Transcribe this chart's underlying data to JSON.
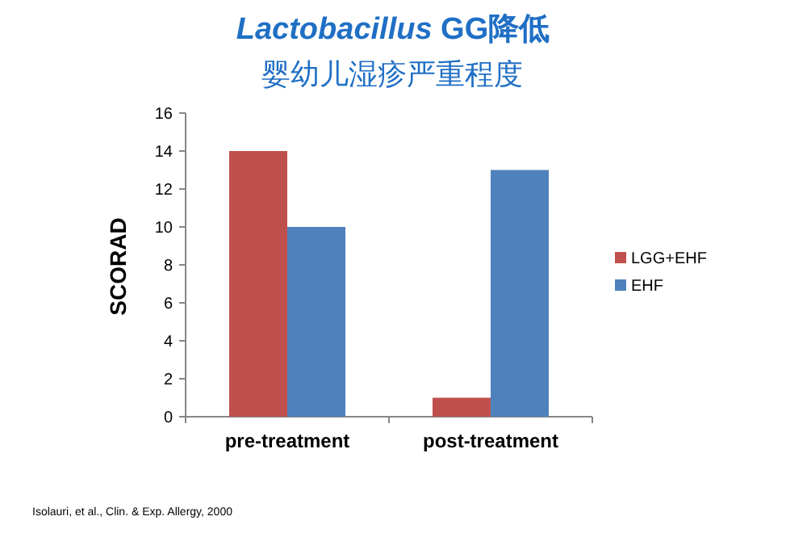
{
  "chart_data": {
    "type": "bar",
    "title": "*Lactobacillus* GG降低",
    "subtitle": "婴幼儿湿疹严重程度",
    "ylabel": "SCORAD",
    "categories": [
      "pre-treatment",
      "post-treatment"
    ],
    "series": [
      {
        "name": "LGG+EHF",
        "color": "#c0504d",
        "values": [
          14,
          1
        ]
      },
      {
        "name": "EHF",
        "color": "#4f81bd",
        "values": [
          10,
          13
        ]
      }
    ],
    "ylim": [
      0,
      16
    ],
    "yticks": [
      0,
      2,
      4,
      6,
      8,
      10,
      12,
      14,
      16
    ],
    "grid": false,
    "legend": "right",
    "annotations": [
      "Isolauri, et al., Clin. & Exp. Allergy, 2000"
    ]
  }
}
